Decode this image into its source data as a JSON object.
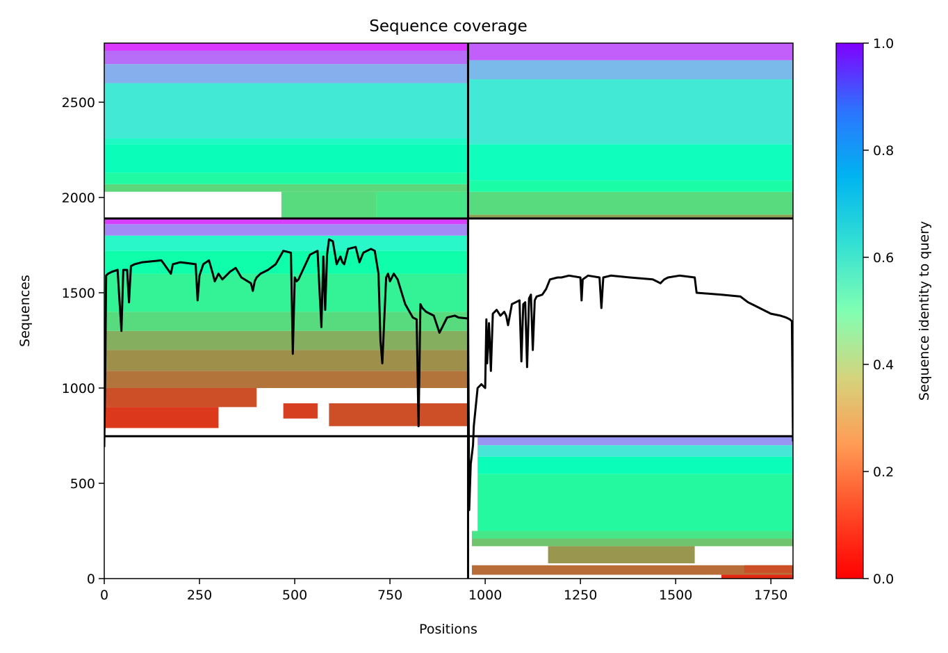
{
  "chart_data": {
    "type": "heatmap",
    "title": "Sequence coverage",
    "xlabel": "Positions",
    "ylabel": "Sequences",
    "xlim": [
      0,
      1808
    ],
    "ylim": [
      0,
      2810
    ],
    "x_ticks": [
      0,
      250,
      500,
      750,
      1000,
      1250,
      1500,
      1750
    ],
    "y_ticks": [
      0,
      500,
      1000,
      1500,
      2000,
      2500
    ],
    "colorbar": {
      "label": "Sequence identity to query",
      "range": [
        0,
        1
      ],
      "ticks": [
        "0.0",
        "0.2",
        "0.4",
        "0.6",
        "0.8",
        "1.0"
      ],
      "colormap": "rainbow_r"
    },
    "chain_boundaries": {
      "x": [
        955
      ],
      "y": [
        747,
        1890
      ]
    },
    "blocks": [
      {
        "name": "chain A rows",
        "x_range": [
          0,
          955
        ],
        "y_range": [
          1890,
          2810
        ],
        "bands": [
          {
            "y": [
              2030,
              2070
            ],
            "x": [
              0,
              955
            ],
            "identity": 0.32
          },
          {
            "y": [
              2070,
              2130
            ],
            "x": [
              0,
              955
            ],
            "identity": 0.44
          },
          {
            "y": [
              2130,
              2280
            ],
            "x": [
              0,
              955
            ],
            "identity": 0.52
          },
          {
            "y": [
              2280,
              2310
            ],
            "x": [
              0,
              955
            ],
            "identity": 0.56
          },
          {
            "y": [
              2310,
              2600
            ],
            "x": [
              0,
              955
            ],
            "identity": 0.63
          },
          {
            "y": [
              2600,
              2700
            ],
            "x": [
              0,
              955
            ],
            "identity": 0.76
          },
          {
            "y": [
              2700,
              2770
            ],
            "x": [
              0,
              955
            ],
            "identity": 0.86
          },
          {
            "y": [
              2770,
              2810
            ],
            "x": [
              0,
              955
            ],
            "identity": 0.93
          },
          {
            "y": [
              1895,
              2030
            ],
            "x": [
              465,
              715
            ],
            "identity": 0.33
          },
          {
            "y": [
              1895,
              2030
            ],
            "x": [
              715,
              955
            ],
            "identity": 0.36
          }
        ]
      },
      {
        "name": "chain B rows",
        "x_range": [
          955,
          1808
        ],
        "y_range": [
          1890,
          2810
        ],
        "bands": [
          {
            "y": [
              1890,
              1910
            ],
            "x": [
              955,
              1808
            ],
            "identity": 0.22
          },
          {
            "y": [
              1910,
              2030
            ],
            "x": [
              955,
              1808
            ],
            "identity": 0.33
          },
          {
            "y": [
              2030,
              2090
            ],
            "x": [
              955,
              1808
            ],
            "identity": 0.45
          },
          {
            "y": [
              2090,
              2280
            ],
            "x": [
              955,
              1808
            ],
            "identity": 0.53
          },
          {
            "y": [
              2280,
              2620
            ],
            "x": [
              955,
              1808
            ],
            "identity": 0.63
          },
          {
            "y": [
              2620,
              2720
            ],
            "x": [
              955,
              1808
            ],
            "identity": 0.74
          },
          {
            "y": [
              2720,
              2810
            ],
            "x": [
              955,
              1808
            ],
            "identity": 0.88
          }
        ]
      },
      {
        "name": "chain A partial rows",
        "x_range": [
          0,
          955
        ],
        "y_range": [
          747,
          1890
        ],
        "bands": [
          {
            "y": [
              1000,
              1090
            ],
            "x": [
              0,
              955
            ],
            "identity": 0.15
          },
          {
            "y": [
              1090,
              1200
            ],
            "x": [
              0,
              955
            ],
            "identity": 0.19
          },
          {
            "y": [
              1200,
              1300
            ],
            "x": [
              0,
              955
            ],
            "identity": 0.24
          },
          {
            "y": [
              1300,
              1400
            ],
            "x": [
              0,
              955
            ],
            "identity": 0.33
          },
          {
            "y": [
              1400,
              1600
            ],
            "x": [
              0,
              955
            ],
            "identity": 0.4
          },
          {
            "y": [
              1600,
              1720
            ],
            "x": [
              0,
              955
            ],
            "identity": 0.47
          },
          {
            "y": [
              1720,
              1800
            ],
            "x": [
              0,
              955
            ],
            "identity": 0.58
          },
          {
            "y": [
              1800,
              1860
            ],
            "x": [
              0,
              955
            ],
            "identity": 0.82
          },
          {
            "y": [
              1860,
              1890
            ],
            "x": [
              0,
              955
            ],
            "identity": 0.92
          },
          {
            "y": [
              900,
              1000
            ],
            "x": [
              0,
              400
            ],
            "identity": 0.1
          },
          {
            "y": [
              790,
              900
            ],
            "x": [
              0,
              300
            ],
            "identity": 0.07
          },
          {
            "y": [
              800,
              920
            ],
            "x": [
              590,
              955
            ],
            "identity": 0.1
          },
          {
            "y": [
              840,
              920
            ],
            "x": [
              470,
              560
            ],
            "identity": 0.08
          }
        ]
      },
      {
        "name": "chain B partial rows",
        "x_range": [
          955,
          1808
        ],
        "y_range": [
          0,
          747
        ],
        "bands": [
          {
            "y": [
              20,
              70
            ],
            "x": [
              965,
              1808
            ],
            "identity": 0.14
          },
          {
            "y": [
              80,
              170
            ],
            "x": [
              1165,
              1550
            ],
            "identity": 0.2
          },
          {
            "y": [
              170,
              210
            ],
            "x": [
              965,
              1808
            ],
            "identity": 0.28
          },
          {
            "y": [
              210,
              250
            ],
            "x": [
              965,
              1808
            ],
            "identity": 0.36
          },
          {
            "y": [
              250,
              550
            ],
            "x": [
              980,
              1808
            ],
            "identity": 0.43
          },
          {
            "y": [
              550,
              640
            ],
            "x": [
              980,
              1808
            ],
            "identity": 0.52
          },
          {
            "y": [
              640,
              700
            ],
            "x": [
              980,
              1808
            ],
            "identity": 0.64
          },
          {
            "y": [
              700,
              747
            ],
            "x": [
              980,
              1808
            ],
            "identity": 0.8
          },
          {
            "y": [
              0,
              20
            ],
            "x": [
              1620,
              1808
            ],
            "identity": 0.05
          },
          {
            "y": [
              30,
              70
            ],
            "x": [
              1680,
              1808
            ],
            "identity": 0.1
          }
        ]
      }
    ],
    "series": [
      {
        "type": "line",
        "color": "#000000",
        "x": [
          0,
          3,
          5,
          10,
          20,
          35,
          40,
          45,
          50,
          60,
          65,
          70,
          80,
          100,
          150,
          175,
          180,
          200,
          240,
          245,
          250,
          260,
          275,
          285,
          290,
          300,
          310,
          320,
          330,
          345,
          360,
          385,
          390,
          395,
          400,
          410,
          430,
          450,
          470,
          490,
          495,
          500,
          505,
          510,
          540,
          560,
          570,
          575,
          580,
          585,
          590,
          600,
          610,
          620,
          625,
          630,
          640,
          660,
          670,
          680,
          690,
          700,
          710,
          720,
          725,
          730,
          740,
          745,
          750,
          760,
          770,
          790,
          810,
          820,
          825,
          830,
          835,
          845,
          865,
          880,
          900,
          920,
          930,
          955,
          958,
          962,
          968,
          970,
          980,
          990,
          1000,
          1003,
          1005,
          1010,
          1015,
          1020,
          1030,
          1040,
          1050,
          1055,
          1060,
          1070,
          1080,
          1090,
          1095,
          1100,
          1105,
          1110,
          1115,
          1120,
          1125,
          1130,
          1135,
          1150,
          1160,
          1170,
          1190,
          1200,
          1220,
          1250,
          1253,
          1256,
          1270,
          1300,
          1305,
          1310,
          1330,
          1380,
          1440,
          1450,
          1460,
          1465,
          1470,
          1480,
          1510,
          1550,
          1555,
          1620,
          1670,
          1690,
          1700,
          1710,
          1750,
          1775,
          1790,
          1800,
          1805,
          1808
        ],
        "y": [
          690,
          1150,
          1590,
          1600,
          1610,
          1620,
          1460,
          1300,
          1620,
          1620,
          1450,
          1640,
          1650,
          1660,
          1670,
          1600,
          1650,
          1660,
          1650,
          1460,
          1590,
          1650,
          1670,
          1600,
          1560,
          1600,
          1570,
          1590,
          1610,
          1630,
          1580,
          1550,
          1510,
          1560,
          1580,
          1600,
          1620,
          1650,
          1720,
          1710,
          1180,
          1580,
          1560,
          1570,
          1700,
          1720,
          1320,
          1690,
          1410,
          1700,
          1780,
          1770,
          1650,
          1690,
          1660,
          1650,
          1730,
          1740,
          1660,
          1710,
          1720,
          1730,
          1720,
          1600,
          1250,
          1130,
          1580,
          1600,
          1560,
          1600,
          1570,
          1440,
          1370,
          1360,
          800,
          1440,
          1420,
          1400,
          1380,
          1290,
          1370,
          1380,
          1370,
          1365,
          360,
          600,
          700,
          800,
          1000,
          1020,
          1000,
          1360,
          1130,
          1340,
          1090,
          1390,
          1410,
          1380,
          1400,
          1380,
          1330,
          1440,
          1450,
          1460,
          1140,
          1440,
          1450,
          1110,
          1470,
          1490,
          1200,
          1460,
          1480,
          1490,
          1520,
          1570,
          1580,
          1580,
          1590,
          1580,
          1460,
          1570,
          1590,
          1580,
          1420,
          1580,
          1590,
          1580,
          1570,
          1560,
          1550,
          1560,
          1570,
          1580,
          1590,
          1580,
          1500,
          1490,
          1480,
          1450,
          1440,
          1430,
          1390,
          1380,
          1370,
          1360,
          1350,
          720
        ]
      }
    ]
  }
}
